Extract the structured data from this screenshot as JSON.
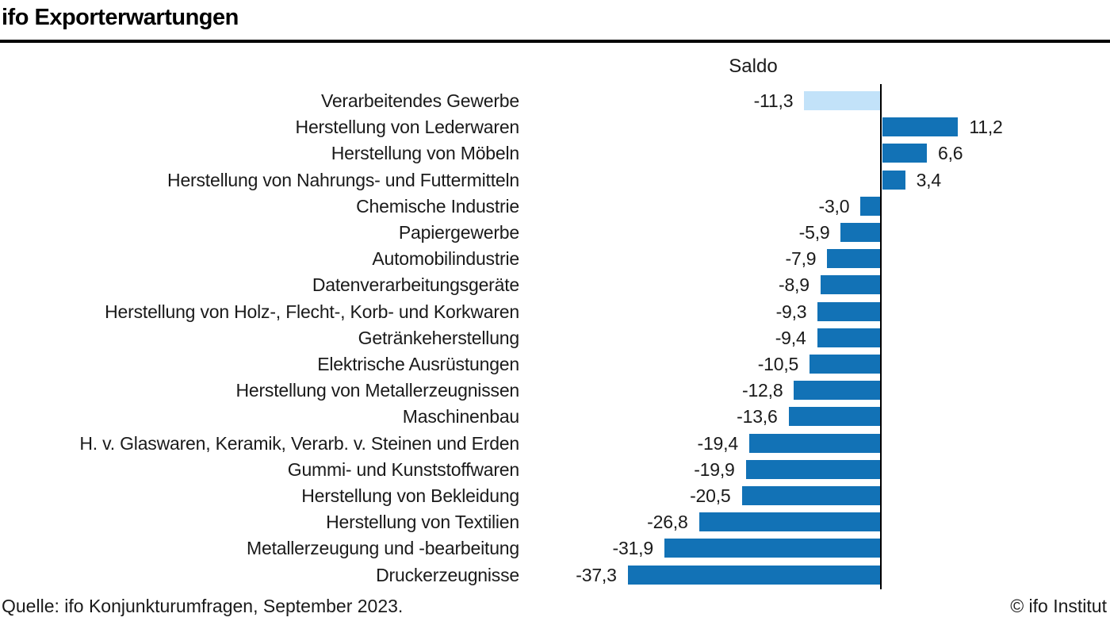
{
  "header": {
    "title": "ifo Exporterwartungen"
  },
  "chart_data": {
    "type": "bar",
    "orientation": "horizontal",
    "title": "ifo Exporterwartungen",
    "value_axis_label": "Saldo",
    "categories": [
      "Verarbeitendes Gewerbe",
      "Herstellung von Lederwaren",
      "Herstellung von Möbeln",
      "Herstellung von Nahrungs- und Futtermitteln",
      "Chemische Industrie",
      "Papiergewerbe",
      "Automobilindustrie",
      "Datenverarbeitungsgeräte",
      "Herstellung von Holz-, Flecht-, Korb- und Korkwaren",
      "Getränkeherstellung",
      "Elektrische Ausrüstungen",
      "Herstellung von Metallerzeugnissen",
      "Maschinenbau",
      "H. v. Glaswaren, Keramik, Verarb. v. Steinen und Erden",
      "Gummi- und Kunststoffwaren",
      "Herstellung von Bekleidung",
      "Herstellung von Textilien",
      "Metallerzeugung und -bearbeitung",
      "Druckerzeugnisse"
    ],
    "values": [
      -11.3,
      11.2,
      6.6,
      3.4,
      -3.0,
      -5.9,
      -7.9,
      -8.9,
      -9.3,
      -9.4,
      -10.5,
      -12.8,
      -13.6,
      -19.4,
      -19.9,
      -20.5,
      -26.8,
      -31.9,
      -37.3
    ],
    "value_labels": [
      "-11,3",
      "11,2",
      "6,6",
      "3,4",
      "-3,0",
      "-5,9",
      "-7,9",
      "-8,9",
      "-9,3",
      "-9,4",
      "-10,5",
      "-12,8",
      "-13,6",
      "-19,4",
      "-19,9",
      "-20,5",
      "-26,8",
      "-31,9",
      "-37,3"
    ],
    "highlighted_index": 0,
    "highlight_bar_color": "#c2e2f9",
    "bar_color": "#1272b6",
    "xlim": [
      -40,
      15
    ],
    "grid": false,
    "legend": "none"
  },
  "footer": {
    "source": "Quelle: ifo Konjunkturumfragen, September 2023.",
    "copyright": "© ifo Institut"
  }
}
